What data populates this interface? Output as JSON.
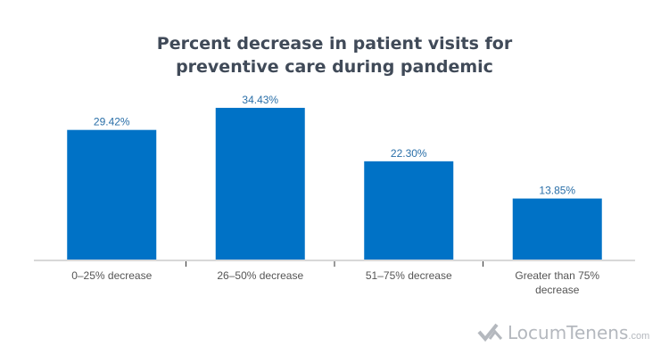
{
  "chart_data": {
    "type": "bar",
    "title": [
      "Percent decrease in patient visits for",
      "preventive care during pandemic"
    ],
    "categories": [
      [
        "0–25% decrease"
      ],
      [
        "26–50% decrease"
      ],
      [
        "51–75% decrease"
      ],
      [
        "Greater than 75%",
        "decrease"
      ]
    ],
    "values": [
      29.42,
      34.43,
      22.3,
      13.85
    ],
    "data_labels": [
      "29.42%",
      "34.43%",
      "22.30%",
      "13.85%"
    ],
    "xlabel": "",
    "ylabel": "",
    "ylim": [
      0,
      40
    ],
    "grid": false,
    "bar_color": "#0072c6",
    "label_color": "#2a6fa8"
  },
  "logo": {
    "main": "LocumTenens",
    "domain": ".com"
  }
}
